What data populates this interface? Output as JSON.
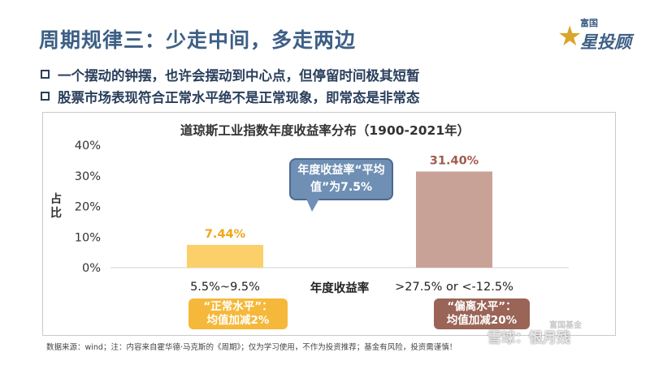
{
  "slide": {
    "title": "周期规律三：少走中间，多走两边",
    "bullets": [
      "一个摆动的钟摆，也许会摆动到中心点，但停留时间极其短暂",
      "股票市场表现符合正常水平绝不是正常现象，即常态是非常态"
    ],
    "logo": {
      "small": "富国",
      "big": "星投顾",
      "star": "★"
    },
    "source": "数据来源：wind；注：内容来自霍华德·马克斯的《周期》；仅为学习使用，不作为投资推荐；基金有风险，投资需谨慎！",
    "watermark": "雪球：恨月残",
    "watermark_sub": "富国基金"
  },
  "chart_data": {
    "type": "bar",
    "title": "道琼斯工业指数年度收益率分布（1900-2021年）",
    "xlabel": "年度收益率",
    "ylabel": "占比",
    "categories": [
      "5.5%~9.5%",
      ">27.5% or <-12.5%"
    ],
    "values": [
      7.44,
      31.4
    ],
    "value_labels": [
      "7.44%",
      "31.40%"
    ],
    "colors": [
      "#fbd06b",
      "#c8a197"
    ],
    "label_colors": [
      "#f2a516",
      "#a05c4c"
    ],
    "ylim": [
      0,
      40
    ],
    "yticks": [
      0,
      10,
      20,
      30,
      40
    ],
    "ytick_labels": [
      "0%",
      "10%",
      "20%",
      "30%",
      "40%"
    ],
    "grid": false,
    "annotations": {
      "callout": [
        "年度收益率“平均",
        "值”为7.5%"
      ],
      "tags": [
        [
          "“正常水平”：",
          "均值加减2%"
        ],
        [
          "“偏离水平”：",
          "均值加减20%"
        ]
      ]
    }
  }
}
